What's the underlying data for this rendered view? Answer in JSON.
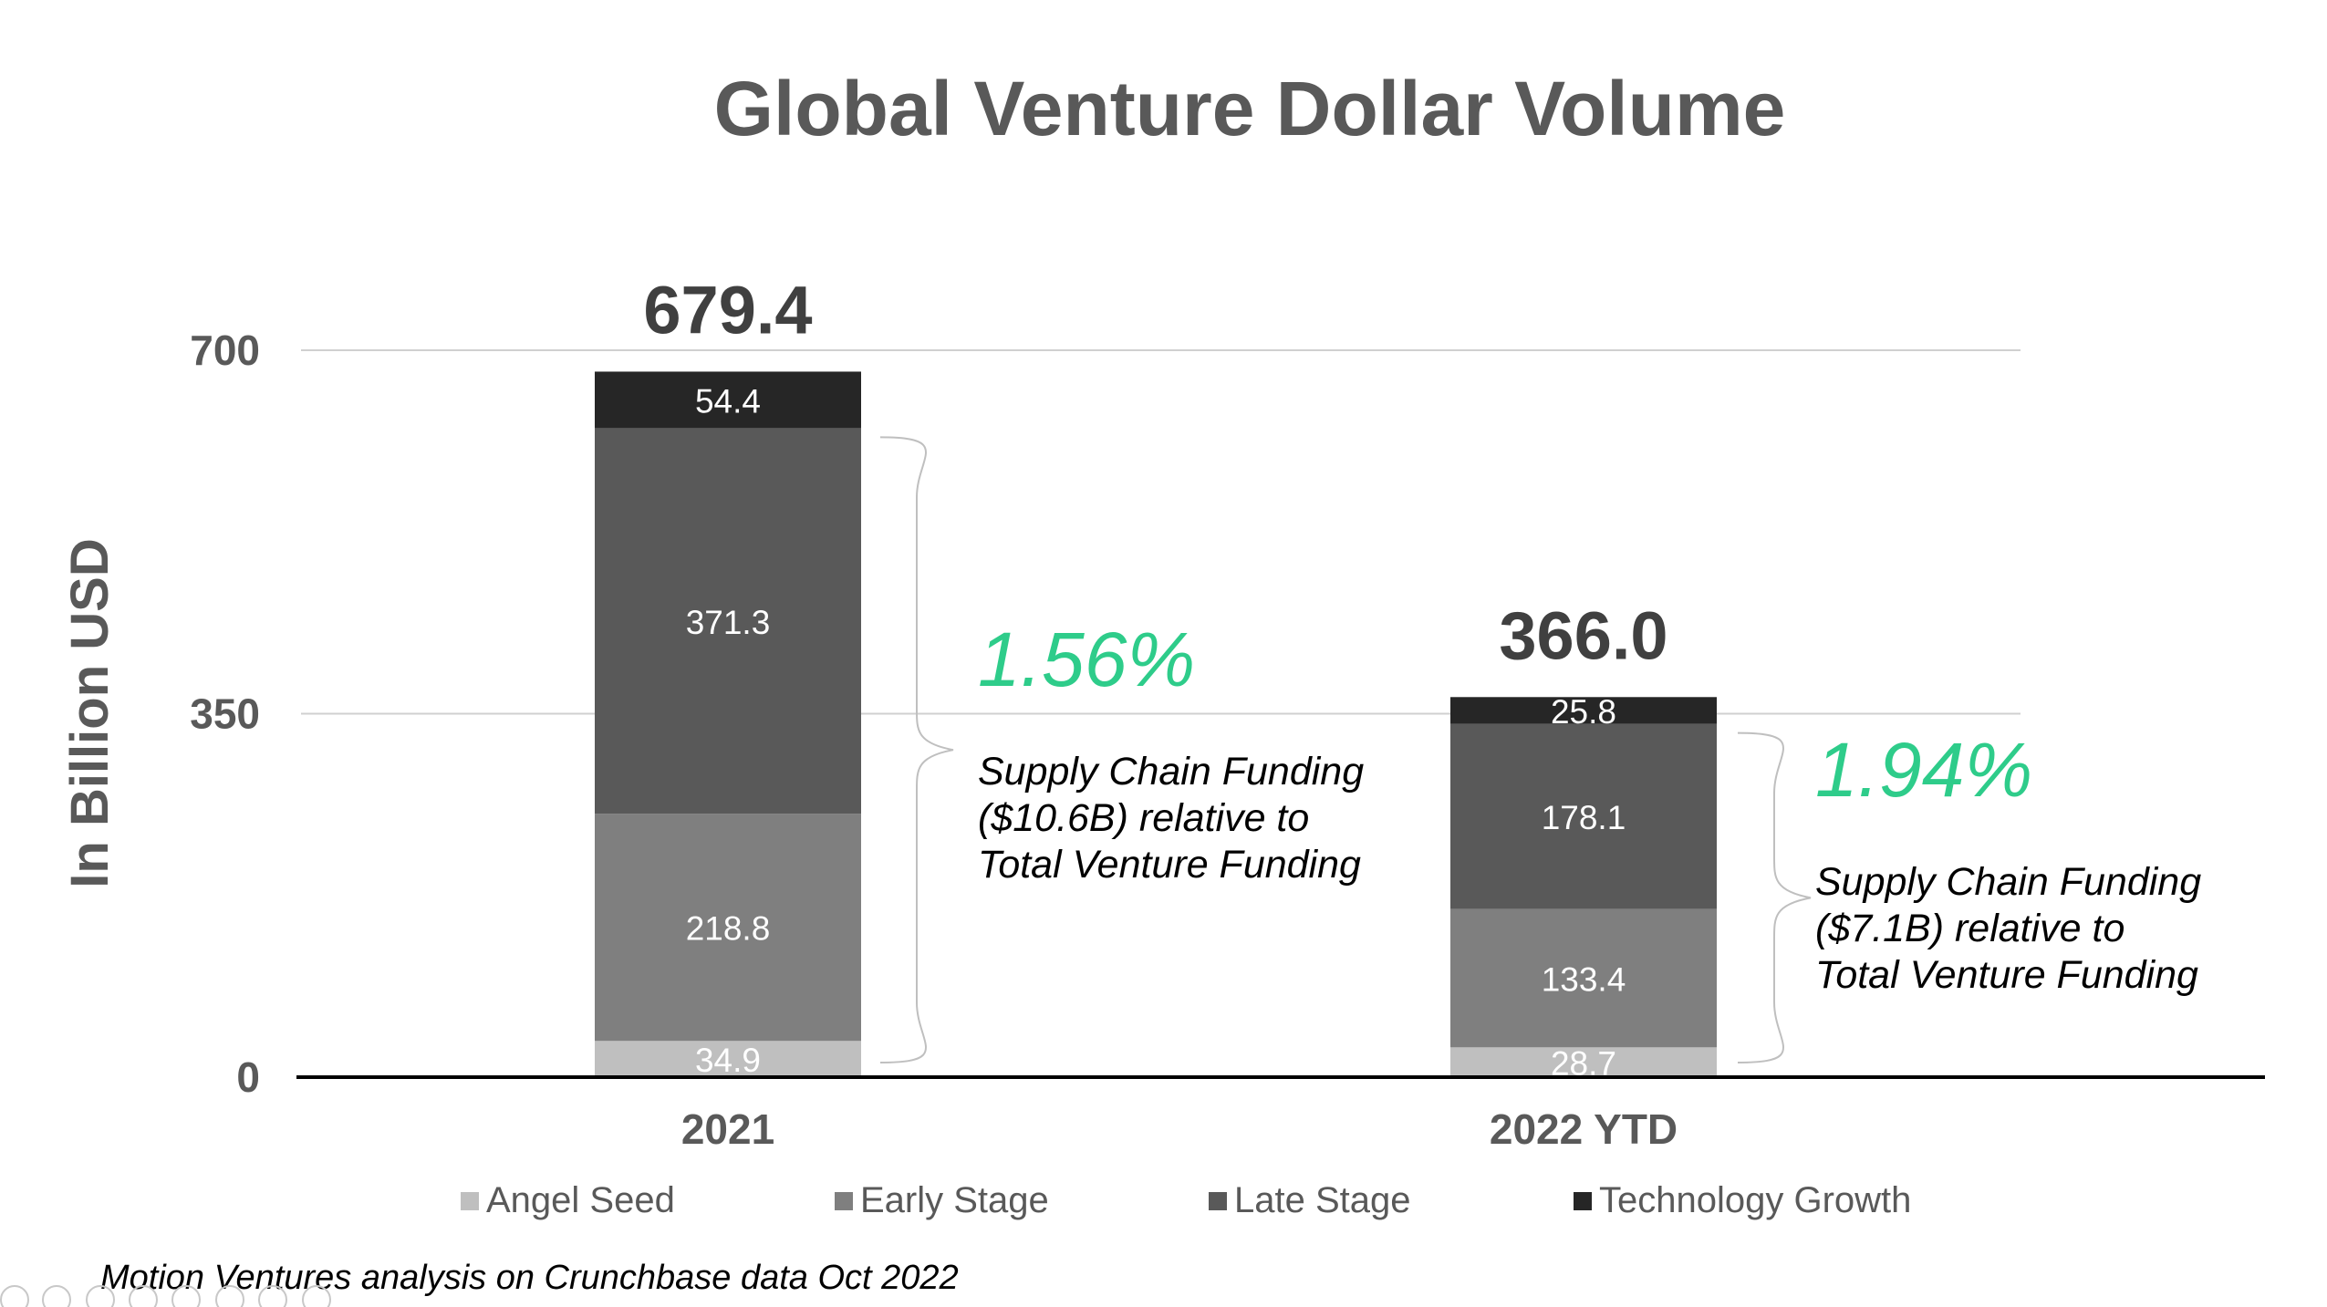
{
  "chart_data": {
    "type": "bar",
    "stacked": true,
    "title": "Global Venture Dollar Volume",
    "ylabel": "In Billion USD",
    "xlabel": "",
    "ylim": [
      0,
      700
    ],
    "yticks": [
      "0",
      "350",
      "700"
    ],
    "categories": [
      "2021",
      "2022 YTD"
    ],
    "series": [
      {
        "name": "Angel Seed",
        "color": "#bfbfbf",
        "values": [
          34.9,
          28.7
        ],
        "labels": [
          "34.9",
          "28.7"
        ]
      },
      {
        "name": "Early Stage",
        "color": "#7f7f7f",
        "values": [
          218.8,
          133.4
        ],
        "labels": [
          "218.8",
          "133.4"
        ]
      },
      {
        "name": "Late Stage",
        "color": "#595959",
        "values": [
          371.3,
          178.1
        ],
        "labels": [
          "371.3",
          "178.1"
        ]
      },
      {
        "name": "Technology Growth",
        "color": "#262626",
        "values": [
          54.4,
          25.8
        ],
        "labels": [
          "54.4",
          "25.8"
        ]
      }
    ],
    "totals": [
      "679.4",
      "366.0"
    ],
    "grid": true,
    "legend": "bottom",
    "annotations": [
      {
        "percent": "1.56%",
        "lines": [
          "Supply Chain Funding",
          "($10.6B) relative to",
          "Total Venture Funding"
        ]
      },
      {
        "percent": "1.94%",
        "lines": [
          "Supply Chain Funding",
          "($7.1B) relative to",
          "Total Venture Funding"
        ]
      }
    ]
  },
  "source": "Motion Ventures analysis on Crunchbase data Oct 2022",
  "colors": {
    "accent": "#2ecc8a",
    "text": "#595959"
  }
}
